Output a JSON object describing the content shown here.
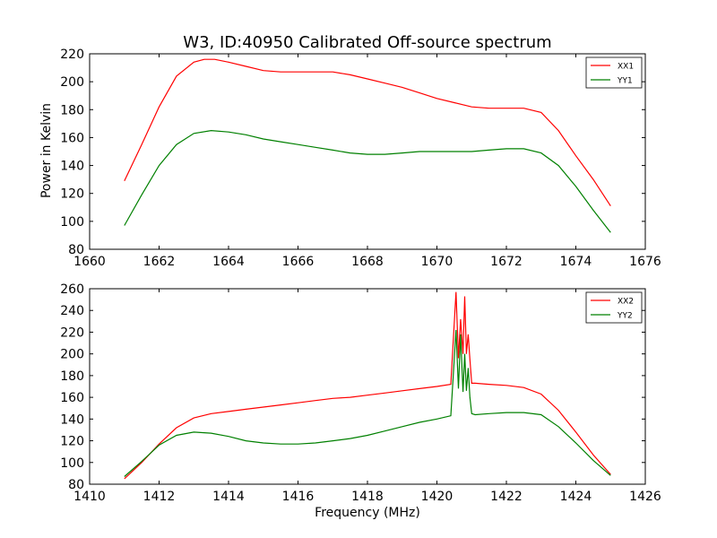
{
  "title": "W3, ID:40950 Calibrated Off-source spectrum",
  "ylabel": "Power in Kelvin",
  "xlabel": "Frequency (MHz)",
  "chart_data": [
    {
      "type": "line",
      "xlim": [
        1660,
        1676
      ],
      "ylim": [
        80,
        220
      ],
      "xticks": [
        1660,
        1662,
        1664,
        1666,
        1668,
        1670,
        1672,
        1674,
        1676
      ],
      "yticks": [
        80,
        100,
        120,
        140,
        160,
        180,
        200,
        220
      ],
      "legend_position": "upper right",
      "series": [
        {
          "name": "XX1",
          "color": "#ff0000",
          "x": [
            1661.0,
            1661.5,
            1662.0,
            1662.5,
            1663.0,
            1663.3,
            1663.6,
            1664.0,
            1664.5,
            1665.0,
            1665.5,
            1666.0,
            1666.5,
            1667.0,
            1667.5,
            1668.0,
            1668.5,
            1669.0,
            1669.5,
            1670.0,
            1670.5,
            1671.0,
            1671.5,
            1672.0,
            1672.5,
            1673.0,
            1673.5,
            1674.0,
            1674.5,
            1675.0
          ],
          "y": [
            129,
            155,
            182,
            204,
            214,
            216,
            216,
            214,
            211,
            208,
            207,
            207,
            207,
            207,
            205,
            202,
            199,
            196,
            192,
            188,
            185,
            182,
            181,
            181,
            181,
            178,
            165,
            147,
            130,
            111
          ]
        },
        {
          "name": "YY1",
          "color": "#008000",
          "x": [
            1661.0,
            1661.5,
            1662.0,
            1662.5,
            1663.0,
            1663.5,
            1664.0,
            1664.5,
            1665.0,
            1665.5,
            1666.0,
            1666.5,
            1667.0,
            1667.5,
            1668.0,
            1668.5,
            1669.0,
            1669.5,
            1670.0,
            1670.5,
            1671.0,
            1671.5,
            1672.0,
            1672.5,
            1673.0,
            1673.5,
            1674.0,
            1674.5,
            1675.0
          ],
          "y": [
            97,
            119,
            140,
            155,
            163,
            165,
            164,
            162,
            159,
            157,
            155,
            153,
            151,
            149,
            148,
            148,
            149,
            150,
            150,
            150,
            150,
            151,
            152,
            152,
            149,
            140,
            125,
            108,
            92
          ]
        }
      ]
    },
    {
      "type": "line",
      "xlim": [
        1410,
        1426
      ],
      "ylim": [
        80,
        260
      ],
      "xticks": [
        1410,
        1412,
        1414,
        1416,
        1418,
        1420,
        1422,
        1424,
        1426
      ],
      "yticks": [
        80,
        100,
        120,
        140,
        160,
        180,
        200,
        220,
        240,
        260
      ],
      "legend_position": "upper right",
      "series": [
        {
          "name": "XX2",
          "color": "#ff0000",
          "x": [
            1411.0,
            1411.5,
            1412.0,
            1412.5,
            1413.0,
            1413.5,
            1414.0,
            1414.5,
            1415.0,
            1415.5,
            1416.0,
            1416.5,
            1417.0,
            1417.5,
            1418.0,
            1418.5,
            1419.0,
            1419.5,
            1420.0,
            1420.4,
            1420.55,
            1420.62,
            1420.68,
            1420.75,
            1420.8,
            1420.85,
            1420.9,
            1420.95,
            1421.0,
            1421.1,
            1421.5,
            1422.0,
            1422.5,
            1423.0,
            1423.5,
            1424.0,
            1424.5,
            1425.0
          ],
          "y": [
            85,
            100,
            117,
            132,
            141,
            145,
            147,
            149,
            151,
            153,
            155,
            157,
            159,
            160,
            162,
            164,
            166,
            168,
            170,
            172,
            257,
            196,
            232,
            200,
            253,
            200,
            218,
            195,
            173,
            173,
            172,
            171,
            169,
            163,
            148,
            128,
            107,
            89
          ]
        },
        {
          "name": "YY2",
          "color": "#008000",
          "x": [
            1411.0,
            1411.5,
            1412.0,
            1412.5,
            1413.0,
            1413.5,
            1414.0,
            1414.5,
            1415.0,
            1415.5,
            1416.0,
            1416.5,
            1417.0,
            1417.5,
            1418.0,
            1418.5,
            1419.0,
            1419.5,
            1420.0,
            1420.4,
            1420.55,
            1420.62,
            1420.68,
            1420.75,
            1420.8,
            1420.85,
            1420.9,
            1420.95,
            1421.0,
            1421.1,
            1421.5,
            1422.0,
            1422.5,
            1423.0,
            1423.5,
            1424.0,
            1424.5,
            1425.0
          ],
          "y": [
            87,
            101,
            116,
            125,
            128,
            127,
            124,
            120,
            118,
            117,
            117,
            118,
            120,
            122,
            125,
            129,
            133,
            137,
            140,
            143,
            222,
            168,
            218,
            165,
            200,
            166,
            187,
            160,
            145,
            144,
            145,
            146,
            146,
            144,
            133,
            118,
            102,
            88
          ]
        }
      ]
    }
  ]
}
